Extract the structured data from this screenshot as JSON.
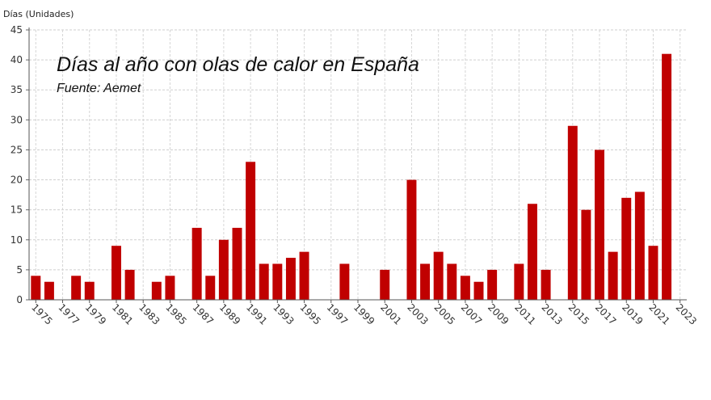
{
  "chart_data": {
    "type": "bar",
    "title": "Días al año con olas de calor en España",
    "subtitle": "Fuente: Aemet",
    "ylabel": "Días (Unidades)",
    "xlabel": "",
    "ylim": [
      0,
      45
    ],
    "yticks": [
      0,
      5,
      10,
      15,
      20,
      25,
      30,
      35,
      40,
      45
    ],
    "x_tick_labels": [
      "1975",
      "1977",
      "1979",
      "1981",
      "1983",
      "1985",
      "1987",
      "1989",
      "1991",
      "1993",
      "1995",
      "1997",
      "1999",
      "2001",
      "2003",
      "2005",
      "2007",
      "2009",
      "2011",
      "2013",
      "2015",
      "2017",
      "2019",
      "2021",
      "2023"
    ],
    "grid": true,
    "bar_color": "#c00000",
    "categories": [
      "1975",
      "1976",
      "1977",
      "1978",
      "1979",
      "1980",
      "1981",
      "1982",
      "1983",
      "1984",
      "1985",
      "1986",
      "1987",
      "1988",
      "1989",
      "1990",
      "1991",
      "1992",
      "1993",
      "1994",
      "1995",
      "1996",
      "1997",
      "1998",
      "1999",
      "2000",
      "2001",
      "2002",
      "2003",
      "2004",
      "2005",
      "2006",
      "2007",
      "2008",
      "2009",
      "2010",
      "2011",
      "2012",
      "2013",
      "2014",
      "2015",
      "2016",
      "2017",
      "2018",
      "2019",
      "2020",
      "2021",
      "2022",
      "2023"
    ],
    "values": [
      4,
      3,
      0,
      4,
      3,
      0,
      9,
      5,
      0,
      3,
      4,
      0,
      12,
      4,
      10,
      12,
      23,
      6,
      6,
      7,
      8,
      0,
      0,
      6,
      0,
      0,
      5,
      0,
      20,
      6,
      8,
      6,
      4,
      3,
      5,
      0,
      6,
      16,
      5,
      0,
      29,
      15,
      25,
      8,
      17,
      18,
      9,
      41,
      0
    ]
  }
}
